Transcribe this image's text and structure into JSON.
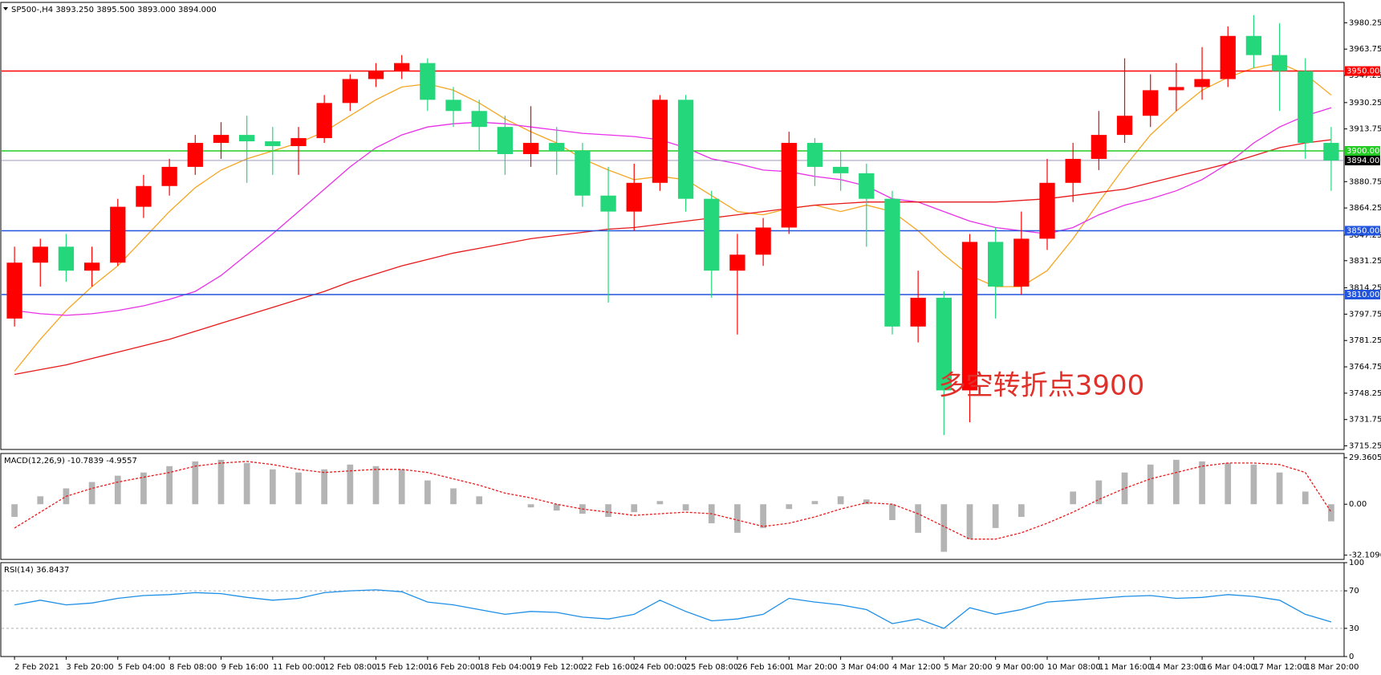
{
  "chart_data": [
    {
      "type": "candlestick",
      "title": "SP500-,H4  3893.250 3895.500 3893.000 3894.000",
      "up_color": "#ff0000",
      "down_color": "#23d77a",
      "categories": [
        "2 Feb 2021",
        null,
        "3 Feb 20:00",
        null,
        "5 Feb 04:00",
        null,
        "8 Feb 08:00",
        null,
        "9 Feb 16:00",
        null,
        "11 Feb 00:00",
        null,
        "12 Feb 08:00",
        null,
        "15 Feb 12:00",
        null,
        "16 Feb 20:00",
        null,
        "18 Feb 04:00",
        null,
        "19 Feb 12:00",
        null,
        "22 Feb 16:00",
        null,
        "24 Feb 00:00",
        null,
        "25 Feb 08:00",
        null,
        "26 Feb 16:00",
        null,
        "1 Mar 20:00",
        null,
        "3 Mar 04:00",
        null,
        "4 Mar 12:00",
        null,
        "5 Mar 20:00",
        null,
        "9 Mar 00:00",
        null,
        "10 Mar 08:00",
        null,
        "11 Mar 16:00",
        null,
        "14 Mar 23:00",
        null,
        "16 Mar 04:00",
        null,
        "17 Mar 12:00",
        null,
        "18 Mar 20:00",
        null
      ],
      "open": [
        3795,
        3830,
        3840,
        3825,
        3830,
        3865,
        3878,
        3890,
        3905,
        3910,
        3906,
        3903,
        3908,
        3930,
        3945,
        3950,
        3955,
        3932,
        3925,
        3915,
        3898,
        3905,
        3900,
        3872,
        3862,
        3880,
        3932,
        3870,
        3825,
        3835,
        3852,
        3905,
        3890,
        3886,
        3870,
        3790,
        3808,
        3750,
        3843,
        3815,
        3845,
        3880,
        3895,
        3910,
        3922,
        3938,
        3940,
        3945,
        3972,
        3960,
        3950,
        3905
      ],
      "high": [
        3840,
        3845,
        3848,
        3840,
        3870,
        3885,
        3895,
        3910,
        3918,
        3922,
        3915,
        3915,
        3935,
        3948,
        3955,
        3960,
        3958,
        3940,
        3932,
        3922,
        3928,
        3915,
        3905,
        3890,
        3892,
        3935,
        3935,
        3875,
        3848,
        3858,
        3912,
        3908,
        3900,
        3892,
        3875,
        3825,
        3812,
        3848,
        3852,
        3862,
        3895,
        3905,
        3925,
        3958,
        3948,
        3955,
        3965,
        3978,
        3985,
        3980,
        3958,
        3915
      ],
      "low": [
        3790,
        3815,
        3818,
        3815,
        3828,
        3858,
        3872,
        3885,
        3895,
        3880,
        3885,
        3885,
        3905,
        3925,
        3940,
        3945,
        3925,
        3915,
        3900,
        3885,
        3890,
        3885,
        3865,
        3805,
        3850,
        3875,
        3862,
        3808,
        3785,
        3828,
        3848,
        3878,
        3875,
        3840,
        3785,
        3780,
        3722,
        3730,
        3795,
        3810,
        3838,
        3868,
        3888,
        3905,
        3915,
        3925,
        3932,
        3940,
        3952,
        3925,
        3895,
        3875
      ],
      "close": [
        3830,
        3840,
        3825,
        3830,
        3865,
        3878,
        3890,
        3905,
        3910,
        3906,
        3903,
        3908,
        3930,
        3945,
        3950,
        3955,
        3932,
        3925,
        3915,
        3898,
        3905,
        3900,
        3872,
        3862,
        3880,
        3932,
        3870,
        3825,
        3835,
        3852,
        3905,
        3890,
        3886,
        3870,
        3790,
        3808,
        3750,
        3843,
        3815,
        3845,
        3880,
        3895,
        3910,
        3922,
        3938,
        3940,
        3945,
        3972,
        3960,
        3950,
        3905,
        3894
      ],
      "moving_averages": [
        {
          "color": "#f5a623",
          "values": [
            3762,
            3782,
            3800,
            3815,
            3828,
            3845,
            3862,
            3877,
            3888,
            3895,
            3900,
            3905,
            3912,
            3922,
            3932,
            3940,
            3942,
            3938,
            3930,
            3920,
            3912,
            3905,
            3895,
            3888,
            3882,
            3884,
            3882,
            3872,
            3862,
            3860,
            3864,
            3866,
            3862,
            3866,
            3862,
            3850,
            3835,
            3822,
            3815,
            3815,
            3825,
            3845,
            3868,
            3890,
            3910,
            3925,
            3938,
            3946,
            3952,
            3955,
            3948,
            3935
          ]
        },
        {
          "color": "#e830e8",
          "values": [
            3800,
            3798,
            3797,
            3798,
            3800,
            3803,
            3807,
            3812,
            3822,
            3835,
            3848,
            3862,
            3876,
            3890,
            3902,
            3910,
            3915,
            3917,
            3918,
            3917,
            3915,
            3913,
            3911,
            3910,
            3909,
            3907,
            3902,
            3895,
            3892,
            3888,
            3887,
            3884,
            3882,
            3878,
            3870,
            3868,
            3862,
            3856,
            3852,
            3850,
            3848,
            3852,
            3860,
            3866,
            3870,
            3875,
            3882,
            3892,
            3905,
            3915,
            3922,
            3927
          ]
        },
        {
          "color": "#e8191b",
          "values": [
            3760,
            3763,
            3766,
            3770,
            3774,
            3778,
            3782,
            3787,
            3792,
            3797,
            3802,
            3807,
            3812,
            3818,
            3823,
            3828,
            3832,
            3836,
            3839,
            3842,
            3845,
            3847,
            3849,
            3851,
            3852,
            3854,
            3856,
            3858,
            3860,
            3862,
            3864,
            3866,
            3867,
            3868,
            3868,
            3868,
            3868,
            3868,
            3868,
            3869,
            3870,
            3872,
            3874,
            3876,
            3880,
            3884,
            3888,
            3892,
            3897,
            3902,
            3905,
            3907
          ]
        }
      ],
      "levels": [
        {
          "value": 3950,
          "label": "3950.000",
          "color": "#ff0000"
        },
        {
          "value": 3900,
          "label": "3900.000",
          "color": "#22cc22"
        },
        {
          "value": 3850,
          "label": "3850.000",
          "color": "#2255dd"
        },
        {
          "value": 3810,
          "label": "3810.000",
          "color": "#2255dd"
        }
      ],
      "last": {
        "value": 3894,
        "label": "3894.000"
      },
      "annotation": "多空转折点3900",
      "ylim": [
        3713,
        3993
      ],
      "yticks": [
        {
          "value": 3980.25,
          "label": "3980.250"
        },
        {
          "value": 3963.75,
          "label": "3963.750"
        },
        {
          "value": 3947.25,
          "label": "3947.250"
        },
        {
          "value": 3930.25,
          "label": "3930.250"
        },
        {
          "value": 3913.75,
          "label": "3913.750"
        },
        {
          "value": 3880.75,
          "label": "3880.750"
        },
        {
          "value": 3864.25,
          "label": "3864.250"
        },
        {
          "value": 3847.25,
          "label": "3847.250"
        },
        {
          "value": 3831.25,
          "label": "3831.250"
        },
        {
          "value": 3814.25,
          "label": "3814.250"
        },
        {
          "value": 3797.75,
          "label": "3797.750"
        },
        {
          "value": 3781.25,
          "label": "3781.250"
        },
        {
          "value": 3764.75,
          "label": "3764.750"
        },
        {
          "value": 3748.25,
          "label": "3748.250"
        },
        {
          "value": 3731.75,
          "label": "3731.750"
        },
        {
          "value": 3715.25,
          "label": "3715.250"
        }
      ]
    },
    {
      "type": "macd",
      "title": "MACD(12,26,9) -10.7839 -4.9557",
      "color": "#b4b4b4",
      "signal_color": "#e8191b",
      "values": [
        -8,
        5,
        10,
        14,
        18,
        20,
        24,
        27,
        28,
        26,
        22,
        20,
        22,
        25,
        24,
        22,
        15,
        10,
        5,
        0,
        -2,
        -4,
        -6,
        -8,
        -5,
        2,
        -4,
        -12,
        -18,
        -15,
        -3,
        2,
        5,
        3,
        -10,
        -18,
        -30,
        -22,
        -15,
        -8,
        0,
        8,
        15,
        20,
        25,
        28,
        27,
        26,
        25,
        20,
        8,
        -10.7839
      ],
      "signal": [
        -15,
        -5,
        5,
        10,
        14,
        17,
        20,
        24,
        26,
        27,
        25,
        22,
        20,
        21,
        22,
        22,
        20,
        16,
        12,
        7,
        4,
        0,
        -3,
        -5,
        -7,
        -6,
        -5,
        -6,
        -10,
        -14,
        -12,
        -8,
        -3,
        1,
        0,
        -6,
        -14,
        -22,
        -22,
        -18,
        -12,
        -5,
        3,
        10,
        16,
        20,
        24,
        26,
        26,
        25,
        20,
        -4.9557
      ],
      "ylim": [
        -34.8,
        32
      ],
      "yticks": [
        29.3605,
        {
          "value": 0,
          "label": "0.00"
        },
        -32.1096
      ]
    },
    {
      "type": "rsi",
      "title": "RSI(14) 36.8437",
      "color": "#1e8fe6",
      "values": [
        55,
        60,
        55,
        57,
        62,
        65,
        66,
        68,
        67,
        63,
        60,
        62,
        68,
        70,
        71,
        69,
        58,
        55,
        50,
        45,
        48,
        47,
        42,
        40,
        45,
        60,
        48,
        38,
        40,
        45,
        62,
        58,
        55,
        50,
        35,
        40,
        30,
        52,
        45,
        50,
        58,
        60,
        62,
        64,
        65,
        62,
        63,
        66,
        64,
        60,
        45,
        36.8437
      ],
      "ylim": [
        0,
        100
      ],
      "yticks": [
        100,
        70,
        30,
        0
      ],
      "levels": [
        70,
        30
      ]
    }
  ]
}
